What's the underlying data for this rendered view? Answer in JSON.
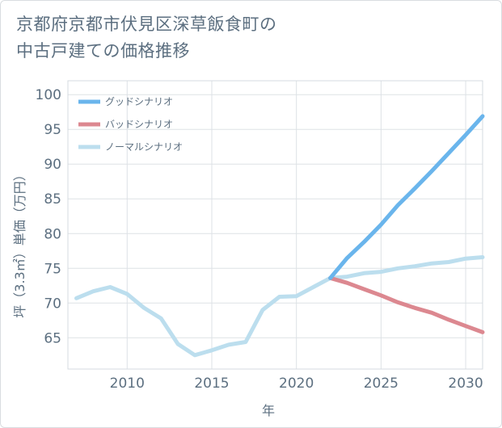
{
  "chart_data": {
    "type": "line",
    "title_line1": "京都府京都市伏見区深草飯食町の",
    "title_line2": "中古戸建ての価格推移",
    "xlabel": "年",
    "ylabel": "坪（3.3㎡）単価（万円）",
    "xlim": [
      2006.5,
      2031
    ],
    "ylim": [
      60.5,
      102
    ],
    "x_ticks": [
      2010,
      2015,
      2020,
      2025,
      2030
    ],
    "y_ticks": [
      65,
      70,
      75,
      80,
      85,
      90,
      95,
      100
    ],
    "grid": true,
    "legend_position": "top-left",
    "series": [
      {
        "name": "グッドシナリオ",
        "color": "#6ab5ec",
        "x": [
          2022,
          2023,
          2024,
          2025,
          2026,
          2027,
          2028,
          2029,
          2030,
          2031
        ],
        "values": [
          73.6,
          76.5,
          78.8,
          81.3,
          84.1,
          86.5,
          89.0,
          91.6,
          94.2,
          96.9
        ]
      },
      {
        "name": "バッドシナリオ",
        "color": "#dc8890",
        "x": [
          2022,
          2023,
          2024,
          2025,
          2026,
          2027,
          2028,
          2029,
          2030,
          2031
        ],
        "values": [
          73.6,
          72.9,
          72.0,
          71.1,
          70.1,
          69.3,
          68.6,
          67.6,
          66.7,
          65.8
        ]
      },
      {
        "name": "ノーマルシナリオ",
        "color": "#bcdeee",
        "x": [
          2007,
          2008,
          2009,
          2010,
          2011,
          2012,
          2013,
          2014,
          2015,
          2016,
          2017,
          2018,
          2019,
          2020,
          2021,
          2022,
          2023,
          2024,
          2025,
          2026,
          2027,
          2028,
          2029,
          2030,
          2031
        ],
        "values": [
          70.7,
          71.7,
          72.3,
          71.3,
          69.3,
          67.8,
          64.1,
          62.5,
          63.2,
          64.0,
          64.4,
          69.0,
          70.9,
          71.0,
          72.3,
          73.6,
          73.8,
          74.3,
          74.5,
          75.0,
          75.3,
          75.7,
          75.9,
          76.4,
          76.6
        ]
      }
    ]
  }
}
